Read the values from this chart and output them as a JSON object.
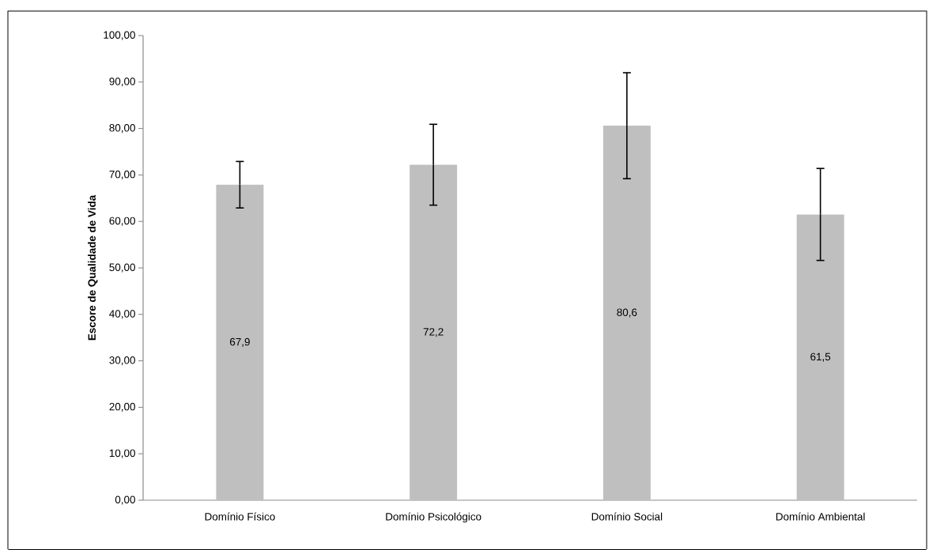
{
  "chart_data": {
    "type": "bar",
    "ylabel": "Escore de Qualidade de Vida",
    "categories": [
      "Domínio Físico",
      "Domínio Psicológico",
      "Domínio Social",
      "Domínio Ambiental"
    ],
    "values": [
      67.9,
      72.2,
      80.6,
      61.5
    ],
    "value_labels": [
      "67,9",
      "72,2",
      "80,6",
      "61,5"
    ],
    "errors": [
      5.0,
      8.7,
      11.4,
      9.9
    ],
    "color": "#bfbfbf",
    "ylim": [
      0,
      100
    ],
    "yticks": [
      {
        "value": 0,
        "label": "0,00"
      },
      {
        "value": 10,
        "label": "10,00"
      },
      {
        "value": 20,
        "label": "20,00"
      },
      {
        "value": 30,
        "label": "30,00"
      },
      {
        "value": 40,
        "label": "40,00"
      },
      {
        "value": 50,
        "label": "50,00"
      },
      {
        "value": 60,
        "label": "60,00"
      },
      {
        "value": 70,
        "label": "70,00"
      },
      {
        "value": 80,
        "label": "80,00"
      },
      {
        "value": 90,
        "label": "90,00"
      },
      {
        "value": 100,
        "label": "100,00"
      }
    ],
    "grid": false,
    "legend": false
  }
}
